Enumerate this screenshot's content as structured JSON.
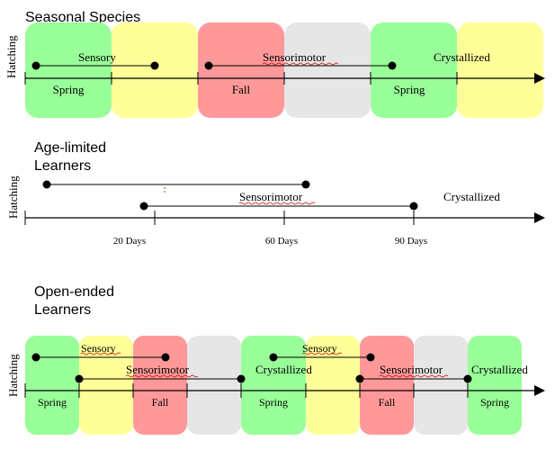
{
  "colors": {
    "spring": "#99ff99",
    "summer": "#ffff99",
    "fall": "#ff9999",
    "winter": "#e6e6e6",
    "line": "#000000",
    "dot": "#000000",
    "squiggle": "#cc0000"
  },
  "sections": {
    "seasonal": {
      "title": "Seasonal Species",
      "axis_label": "Hatching",
      "labels": {
        "sensory": "Sensory",
        "sensorimotor": "Sensorimotor",
        "crystallized": "Crystallized",
        "spring_1": "Spring",
        "fall": "Fall",
        "spring_2": "Spring"
      }
    },
    "age_limited": {
      "title_line1": "Age-limited",
      "title_line2": "Learners",
      "axis_label": "Hatching",
      "labels": {
        "sensorimotor": "Sensorimotor",
        "crystallized": "Crystallized"
      },
      "ticks": [
        "20 Days",
        "60 Days",
        "90 Days"
      ]
    },
    "open_ended": {
      "title_line1": "Open-ended",
      "title_line2": "Learners",
      "axis_label": "Hatching",
      "labels": {
        "sensory_1": "Sensory",
        "sensorimotor_1": "Sensorimotor",
        "crystallized_1": "Crystallized",
        "sensory_2": "Sensory",
        "sensorimotor_2": "Sensorimotor",
        "crystallized_2": "Crystallized",
        "spring_1": "Spring",
        "fall_1": "Fall",
        "spring_2": "Spring",
        "fall_2": "Fall",
        "spring_3": "Spring"
      }
    }
  }
}
